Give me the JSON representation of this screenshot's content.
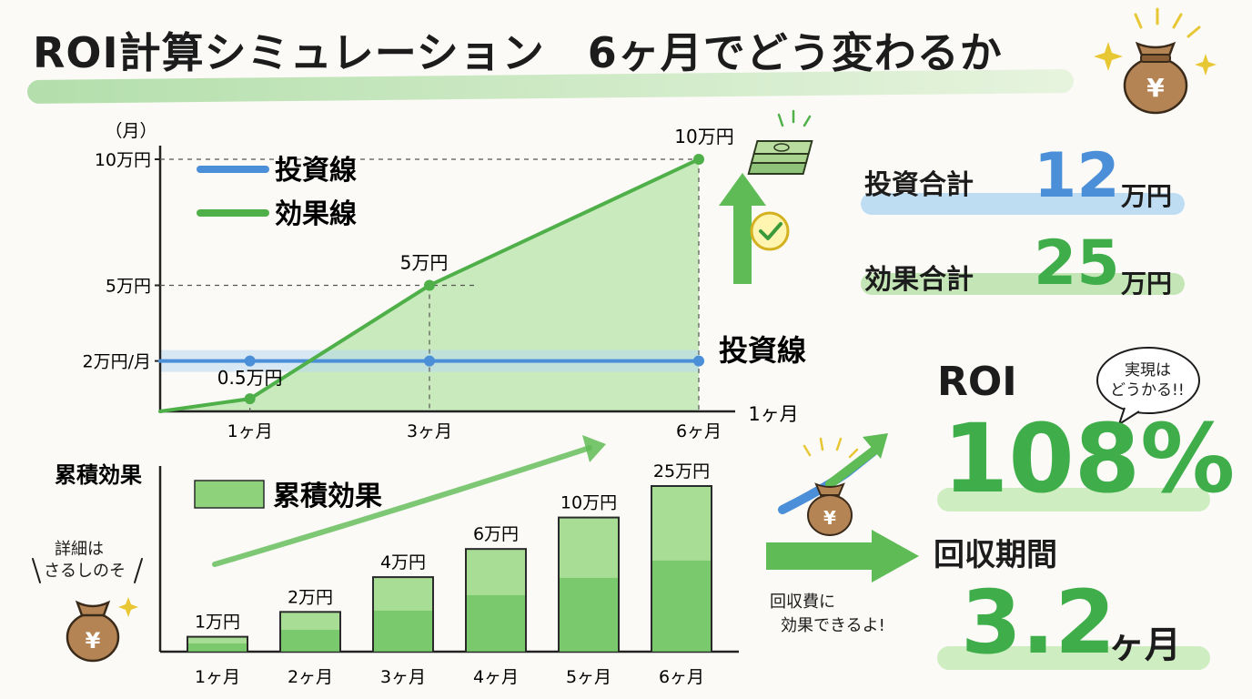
{
  "title": "ROI計算シミュレーション　6ヶ月でどう変わるか",
  "colors": {
    "investment": "#4a8fd8",
    "effect": "#4fb04a",
    "fill_green": "#9fdc8e",
    "band_green": "#b6e3a6",
    "band_blue": "#b9d8f2"
  },
  "icons": [
    "money-bag-yen-icon",
    "sparkle-icon",
    "cash-stack-icon",
    "check-circle-icon",
    "up-arrow-icon",
    "right-arrow-icon",
    "trend-arrow-icon"
  ],
  "chart_data": [
    {
      "type": "line",
      "ylabel": "（月）",
      "yticks": [
        {
          "label": "10万円",
          "value": 10
        },
        {
          "label": "5万円",
          "value": 5
        },
        {
          "label": "2万円/月",
          "value": 2
        }
      ],
      "ylim": [
        0,
        10
      ],
      "xticks": [
        {
          "label": "1ヶ月",
          "value": 1
        },
        {
          "label": "3ヶ月",
          "value": 3
        },
        {
          "label": "6ヶ月",
          "value": 6
        }
      ],
      "x_end_label": "1ヶ月",
      "xlim": [
        0,
        6
      ],
      "legend": [
        "投資線",
        "効果線"
      ],
      "legend_position": "top-left",
      "series": [
        {
          "name": "投資線",
          "color": "#4a8fd8",
          "x": [
            0,
            1,
            3,
            6
          ],
          "y": [
            2,
            2,
            2,
            2
          ],
          "marker_x": [
            1,
            3,
            6
          ],
          "end_label": "投資線"
        },
        {
          "name": "効果線",
          "color": "#4fb04a",
          "x": [
            0,
            1,
            3,
            6
          ],
          "y": [
            0,
            0.5,
            5,
            10
          ],
          "marker_x": [
            1,
            3,
            6
          ]
        }
      ],
      "point_labels": [
        {
          "x": 1,
          "y": 0.5,
          "label": "0.5万円"
        },
        {
          "x": 3,
          "y": 5,
          "label": "5万円"
        },
        {
          "x": 6,
          "y": 10,
          "label": "10万円"
        }
      ],
      "grid": "dashed guides at labeled points"
    },
    {
      "type": "bar",
      "ylabel": "累積効果",
      "legend": [
        "累積効果"
      ],
      "categories": [
        "1ヶ月",
        "2ヶ月",
        "3ヶ月",
        "4ヶ月",
        "5ヶ月",
        "6ヶ月"
      ],
      "values": [
        1,
        2,
        4,
        6,
        10,
        25
      ],
      "value_labels": [
        "1万円",
        "2万円",
        "4万円",
        "6万円",
        "10万円",
        "25万円"
      ],
      "bar_heights_rel": [
        0.09,
        0.24,
        0.45,
        0.62,
        0.81,
        1.0
      ]
    }
  ],
  "summary": {
    "investment_label": "投資合計",
    "investment_value": "12",
    "investment_unit": "万円",
    "effect_label": "効果合計",
    "effect_value": "25",
    "effect_unit": "万円",
    "roi_label": "ROI",
    "roi_value": "108%",
    "roi_bubble": [
      "実現は",
      "どうかる!!"
    ],
    "payback_label": "回収期間",
    "payback_value": "3.2",
    "payback_unit": "ヶ月",
    "payback_note": [
      "回収費に",
      "効果できるよ!"
    ]
  },
  "side_note": [
    "詳細は",
    "さるしのそ"
  ]
}
